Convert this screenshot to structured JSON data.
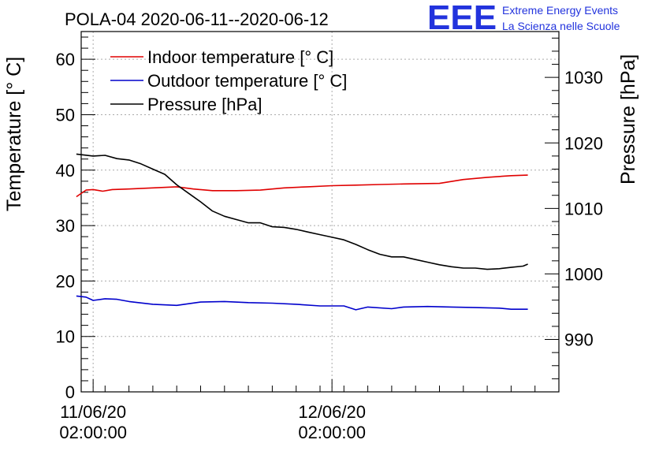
{
  "chart_data": {
    "type": "line",
    "title": "POLA-04 2020-06-11--2020-06-12",
    "ylabel": "Temperature [° C]",
    "y2label": "Pressure [hPa]",
    "xlabel": "",
    "ylim": [
      0,
      65
    ],
    "y2lim": [
      982,
      1037
    ],
    "yticks": [
      "0",
      "10",
      "20",
      "30",
      "40",
      "50",
      "60"
    ],
    "y2ticks": [
      "990",
      "1000",
      "1010",
      "1020",
      "1030"
    ],
    "x_time_range_hours": [
      -0.5,
      19.5
    ],
    "xticks": [
      {
        "hour": 0,
        "label_line1": "11/06/20",
        "label_line2": "02:00:00"
      },
      {
        "hour": 10,
        "label_line1": "12/06/20",
        "label_line2": "02:00:00"
      }
    ],
    "grid": true,
    "legend_position": "top-left",
    "series": [
      {
        "name": "Indoor temperature [° C]",
        "color": "#e00000",
        "axis": "left",
        "points": [
          [
            -0.7,
            35.2
          ],
          [
            -0.3,
            36.4
          ],
          [
            0,
            36.5
          ],
          [
            0.4,
            36.2
          ],
          [
            0.8,
            36.5
          ],
          [
            1.5,
            36.6
          ],
          [
            2.5,
            36.8
          ],
          [
            3.5,
            37.0
          ],
          [
            4.2,
            36.6
          ],
          [
            5.0,
            36.3
          ],
          [
            6.0,
            36.3
          ],
          [
            7.0,
            36.4
          ],
          [
            8.0,
            36.8
          ],
          [
            9.0,
            37.0
          ],
          [
            10.0,
            37.2
          ],
          [
            11.0,
            37.3
          ],
          [
            12.0,
            37.4
          ],
          [
            13.0,
            37.5
          ],
          [
            14.5,
            37.6
          ],
          [
            15.5,
            38.3
          ],
          [
            16.5,
            38.7
          ],
          [
            17.5,
            39.0
          ],
          [
            18.2,
            39.1
          ]
        ]
      },
      {
        "name": "Outdoor temperature [° C]",
        "color": "#0000cc",
        "axis": "left",
        "points": [
          [
            -0.7,
            17.3
          ],
          [
            -0.3,
            17.1
          ],
          [
            0,
            16.5
          ],
          [
            0.5,
            16.8
          ],
          [
            1.0,
            16.7
          ],
          [
            1.5,
            16.3
          ],
          [
            2.5,
            15.8
          ],
          [
            3.5,
            15.6
          ],
          [
            4.5,
            16.2
          ],
          [
            5.5,
            16.3
          ],
          [
            6.5,
            16.1
          ],
          [
            7.5,
            16.0
          ],
          [
            8.5,
            15.8
          ],
          [
            9.5,
            15.5
          ],
          [
            10.5,
            15.5
          ],
          [
            11.0,
            14.8
          ],
          [
            11.5,
            15.3
          ],
          [
            12.5,
            15.0
          ],
          [
            13.0,
            15.3
          ],
          [
            14.0,
            15.4
          ],
          [
            15.0,
            15.3
          ],
          [
            16.0,
            15.2
          ],
          [
            17.0,
            15.1
          ],
          [
            17.5,
            14.9
          ],
          [
            18.2,
            14.9
          ]
        ]
      },
      {
        "name": "Pressure [hPa]",
        "color": "#000000",
        "axis": "right",
        "points": [
          [
            -0.7,
            1018.3
          ],
          [
            0,
            1018.0
          ],
          [
            0.5,
            1018.1
          ],
          [
            1.0,
            1017.6
          ],
          [
            1.5,
            1017.4
          ],
          [
            2.0,
            1016.8
          ],
          [
            2.5,
            1016.0
          ],
          [
            3.0,
            1015.2
          ],
          [
            3.5,
            1013.6
          ],
          [
            4.0,
            1012.3
          ],
          [
            4.5,
            1011.0
          ],
          [
            5.0,
            1009.6
          ],
          [
            5.5,
            1008.8
          ],
          [
            6.0,
            1008.3
          ],
          [
            6.5,
            1007.8
          ],
          [
            7.0,
            1007.8
          ],
          [
            7.5,
            1007.2
          ],
          [
            8.0,
            1007.1
          ],
          [
            8.5,
            1006.8
          ],
          [
            9.0,
            1006.4
          ],
          [
            9.5,
            1006.0
          ],
          [
            10.0,
            1005.6
          ],
          [
            10.5,
            1005.2
          ],
          [
            11.0,
            1004.5
          ],
          [
            11.5,
            1003.7
          ],
          [
            12.0,
            1003.0
          ],
          [
            12.5,
            1002.6
          ],
          [
            13.0,
            1002.6
          ],
          [
            13.5,
            1002.2
          ],
          [
            14.0,
            1001.8
          ],
          [
            14.5,
            1001.4
          ],
          [
            15.0,
            1001.1
          ],
          [
            15.5,
            1000.9
          ],
          [
            16.0,
            1000.9
          ],
          [
            16.5,
            1000.7
          ],
          [
            17.0,
            1000.8
          ],
          [
            17.5,
            1001.0
          ],
          [
            18.0,
            1001.2
          ],
          [
            18.2,
            1001.5
          ]
        ]
      }
    ]
  },
  "logo": {
    "mark": "EEE",
    "line1": "Extreme Energy Events",
    "line2": "La Scienza nelle Scuole",
    "color": "#2233dd"
  }
}
